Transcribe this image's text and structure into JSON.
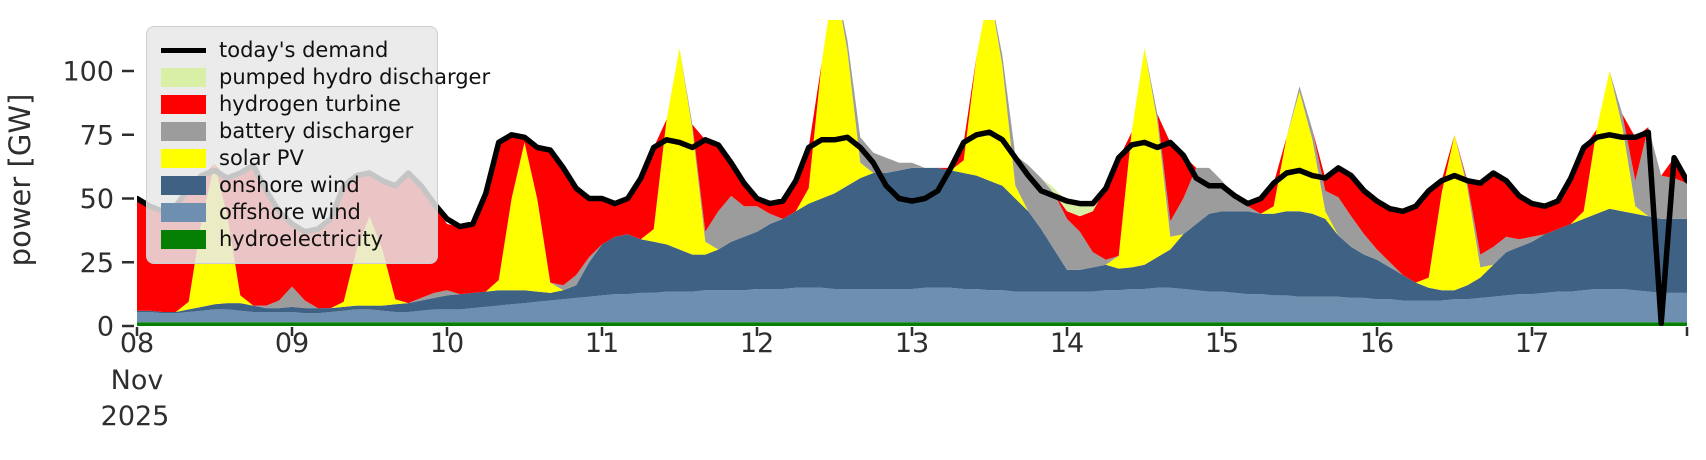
{
  "figure_title": "",
  "axes": {
    "ylabel": "power [GW]",
    "ylim": [
      0,
      120
    ],
    "ytick_values": [
      0,
      25,
      50,
      75,
      100
    ],
    "ytick_labels": [
      "0",
      "25",
      "50",
      "75",
      "100"
    ],
    "xtick_days": [
      8,
      9,
      10,
      11,
      12,
      13,
      14,
      15,
      16,
      17
    ],
    "xtick_labels": [
      "08",
      "09",
      "10",
      "11",
      "12",
      "13",
      "14",
      "15",
      "16",
      "17"
    ],
    "x_month_label": "Nov",
    "x_year_label": "2025",
    "x_end_day": 18,
    "tick_color": "#2e2e2e"
  },
  "legend": {
    "items": [
      {
        "label": "today's demand",
        "color": "#000000",
        "swatch": "line"
      },
      {
        "label": "pumped hydro discharger",
        "color": "#d9efa6",
        "swatch": "patch"
      },
      {
        "label": "hydrogen turbine",
        "color": "#fe0000",
        "swatch": "patch"
      },
      {
        "label": "battery discharger",
        "color": "#9c9c9c",
        "swatch": "patch"
      },
      {
        "label": "solar PV",
        "color": "#ffff00",
        "swatch": "patch"
      },
      {
        "label": "onshore wind",
        "color": "#3f6284",
        "swatch": "patch"
      },
      {
        "label": "offshore wind",
        "color": "#6e8fb0",
        "swatch": "patch"
      },
      {
        "label": "hydroelectricity",
        "color": "#058005",
        "swatch": "patch"
      }
    ]
  },
  "chart_data": {
    "type": "area",
    "stacked": true,
    "title": "",
    "xlabel": "Nov 2025 (days 08-18)",
    "ylabel": "power [GW]",
    "ylim": [
      0,
      120
    ],
    "x_start": "2025-11-08T00:00",
    "x_end": "2025-11-18T00:00",
    "step_hours": 2,
    "legend_position": "upper left",
    "grid": false,
    "demand_line": {
      "name": "today's demand",
      "color": "#000000",
      "values": [
        50,
        47,
        45,
        47,
        54,
        59,
        61,
        58,
        60,
        63,
        53,
        45,
        40,
        37,
        38,
        42,
        55,
        59,
        60,
        57,
        55,
        60,
        55,
        48,
        42,
        39,
        40,
        52,
        72,
        75,
        74,
        70,
        69,
        62,
        54,
        50,
        50,
        48,
        50,
        58,
        70,
        73,
        72,
        70,
        73,
        71,
        64,
        56,
        50,
        48,
        49,
        57,
        70,
        73,
        73,
        74,
        70,
        64,
        55,
        50,
        49,
        50,
        53,
        62,
        72,
        75,
        76,
        73,
        66,
        59,
        53,
        51,
        49,
        48,
        48,
        54,
        66,
        71,
        72,
        70,
        72,
        67,
        58,
        55,
        55,
        51,
        48,
        50,
        56,
        60,
        61,
        59,
        58,
        62,
        59,
        53,
        49,
        46,
        45,
        47,
        53,
        57,
        59,
        57,
        56,
        60,
        57,
        51,
        48,
        47,
        49,
        58,
        70,
        74,
        75,
        74,
        74,
        76,
        1,
        66,
        57
      ]
    },
    "stack_bottom_to_top": [
      {
        "name": "hydroelectricity",
        "color": "#058005",
        "values": [
          1.5,
          1.5,
          1.5,
          1.5,
          1.5,
          1.5,
          1.5,
          1.5,
          1.5,
          1.5,
          1.5,
          1.5,
          1.5,
          1.5,
          1.5,
          1.5,
          1.5,
          1.5,
          1.5,
          1.5,
          1.5,
          1.5,
          1.5,
          1.5,
          1.5,
          1.5,
          1.5,
          1.5,
          1.5,
          1.5,
          1.5,
          1.5,
          1.5,
          1.5,
          1.5,
          1.5,
          1.5,
          1.5,
          1.5,
          1.5,
          1.5,
          1.5,
          1.5,
          1.5,
          1.5,
          1.5,
          1.5,
          1.5,
          1.5,
          1.5,
          1.5,
          1.5,
          1.5,
          1.5,
          1.5,
          1.5,
          1.5,
          1.5,
          1.5,
          1.5,
          1.5,
          1.5,
          1.5,
          1.5,
          1.5,
          1.5,
          1.5,
          1.5,
          1.5,
          1.5,
          1.5,
          1.5,
          1.5,
          1.5,
          1.5,
          1.5,
          1.5,
          1.5,
          1.5,
          1.5,
          1.5,
          1.5,
          1.5,
          1.5,
          1.5,
          1.5,
          1.5,
          1.5,
          1.5,
          1.5,
          1.5,
          1.5,
          1.5,
          1.5,
          1.5,
          1.5,
          1.5,
          1.5,
          1.5,
          1.5,
          1.5,
          1.5,
          1.5,
          1.5,
          1.5,
          1.5,
          1.5,
          1.5,
          1.5,
          1.5,
          1.5,
          1.5,
          1.5,
          1.5,
          1.5,
          1.5,
          1.5,
          1.5,
          1.5,
          1.5,
          1.5
        ]
      },
      {
        "name": "offshore wind",
        "color": "#6e8fb0",
        "values": [
          4,
          4,
          3.5,
          3.5,
          4,
          4.5,
          5,
          5,
          4.5,
          4,
          4,
          4,
          4,
          3.5,
          3.5,
          4,
          4.5,
          5,
          5,
          4.5,
          4,
          4,
          4.5,
          5,
          5,
          5,
          5.5,
          6,
          6.5,
          7,
          7.5,
          8,
          8.5,
          9,
          9.5,
          10,
          10.5,
          11,
          11,
          11.5,
          11.5,
          12,
          12,
          12,
          12.5,
          12.5,
          12.5,
          12.5,
          13,
          13,
          13,
          13.5,
          13.5,
          13.5,
          13,
          13,
          13,
          13,
          13,
          13,
          13,
          13.5,
          13.5,
          13.5,
          13,
          13,
          12.5,
          12.5,
          12,
          12,
          12,
          12,
          12,
          12,
          12,
          12.5,
          12.5,
          13,
          13,
          13.5,
          13.5,
          13,
          12.5,
          12,
          12,
          11.5,
          11,
          11,
          10.5,
          10.5,
          10,
          10,
          10,
          10,
          9.5,
          9.5,
          9,
          9,
          8.5,
          8.5,
          8.5,
          8.5,
          9,
          9,
          9.5,
          10,
          10.5,
          11,
          11,
          11.5,
          12,
          12,
          12.5,
          13,
          13,
          13,
          12.5,
          12,
          11.5,
          11.5,
          11.5
        ]
      },
      {
        "name": "onshore wind",
        "color": "#3f6284",
        "values": [
          0.5,
          0.5,
          0.5,
          0.5,
          1,
          1.5,
          2,
          2.5,
          3,
          2.5,
          1.5,
          1.5,
          2,
          2,
          2,
          1.5,
          1.5,
          1.5,
          1.5,
          2,
          3,
          3.5,
          4,
          4.5,
          5.5,
          6,
          6,
          6,
          6,
          5.5,
          5,
          4,
          3,
          3.5,
          5,
          13.5,
          20,
          22.5,
          23.5,
          21,
          20,
          18.5,
          16.5,
          14.5,
          14,
          16,
          19,
          21,
          22.5,
          25.5,
          27.5,
          30,
          33,
          35,
          37.5,
          40.5,
          43.5,
          45.5,
          45.5,
          46.5,
          47.5,
          47,
          47,
          46,
          45.5,
          44.5,
          43,
          41,
          36.5,
          31.5,
          24.5,
          16.5,
          8.5,
          8.5,
          9.5,
          10,
          8.5,
          8.5,
          9.5,
          12,
          15,
          21.5,
          26,
          30.5,
          31.5,
          32,
          32.5,
          31.5,
          32,
          33,
          33.5,
          32.5,
          30.5,
          24,
          20,
          17,
          15.5,
          12.5,
          10,
          7,
          5,
          4,
          3.5,
          5.5,
          8,
          12.5,
          17,
          18.5,
          20.5,
          23,
          24.5,
          26.5,
          28,
          29.5,
          31.5,
          30.5,
          30,
          29.5,
          29,
          29,
          29
        ]
      },
      {
        "name": "solar PV",
        "color": "#ffff00",
        "values": [
          0,
          0,
          0,
          0,
          3,
          34,
          55,
          34,
          3,
          0,
          0,
          0,
          0,
          0,
          0,
          0,
          2,
          22,
          35,
          22,
          2,
          0,
          0,
          0,
          0,
          0,
          0,
          0,
          4,
          36,
          58,
          36,
          4,
          0,
          0,
          0,
          0,
          0,
          0,
          0,
          5,
          49,
          79,
          49,
          5,
          0,
          0,
          0,
          0,
          0,
          0,
          0,
          6,
          53,
          85,
          53,
          6,
          0,
          0,
          0,
          0,
          0,
          0,
          0,
          5,
          47,
          75,
          47,
          5,
          0,
          0,
          0,
          0,
          0,
          0,
          0,
          5,
          53,
          85,
          53,
          5,
          0,
          0,
          0,
          0,
          0,
          0,
          0,
          3,
          29,
          47,
          29,
          3,
          0,
          0,
          0,
          0,
          0,
          0,
          0,
          4,
          38,
          61,
          38,
          4,
          0,
          0,
          0,
          0,
          0,
          0,
          0,
          3,
          33,
          54,
          33,
          3,
          0,
          0,
          0,
          0
        ]
      },
      {
        "name": "battery discharger",
        "color": "#9c9c9c",
        "values": [
          0,
          0,
          0,
          0,
          0,
          0,
          0,
          0,
          0,
          0,
          1,
          3,
          8,
          3,
          0,
          0,
          0,
          0,
          0,
          0,
          0,
          0,
          1,
          2,
          2,
          0,
          0,
          0,
          0,
          0,
          0,
          0,
          0,
          2,
          4,
          2,
          0,
          0,
          0,
          0,
          0,
          0,
          0,
          2,
          4,
          15,
          18,
          12,
          10,
          4,
          0,
          0,
          0,
          0,
          0,
          4,
          10,
          8,
          6,
          3,
          2,
          0,
          0,
          0,
          0,
          0,
          0,
          4,
          12,
          18,
          20,
          22,
          20,
          15,
          6,
          2,
          0,
          0,
          0,
          3,
          6,
          14,
          22,
          18,
          12,
          6,
          2,
          0,
          0,
          0,
          2,
          4,
          8,
          15,
          12,
          8,
          4,
          2,
          0,
          0,
          0,
          0,
          0,
          2,
          5,
          7,
          6,
          3,
          2,
          0,
          0,
          0,
          0,
          0,
          0,
          5,
          10,
          35,
          17,
          16,
          14
        ]
      },
      {
        "name": "hydrogen turbine",
        "color": "#fe0000",
        "values": [
          44,
          41,
          39.5,
          41.5,
          44.5,
          17.5,
          0,
          15,
          48,
          55,
          45,
          35,
          24.5,
          27,
          31,
          35,
          45.5,
          29,
          17,
          27,
          44.5,
          51,
          44,
          35,
          26,
          26.5,
          27,
          38.5,
          54,
          25,
          2,
          20.5,
          52,
          46,
          34,
          23,
          18,
          13,
          14,
          24,
          32,
          0,
          0,
          0,
          36,
          26,
          13,
          9,
          3,
          4,
          7,
          12,
          16,
          0,
          0,
          0,
          0,
          0,
          0,
          0,
          0,
          0,
          0,
          1,
          7,
          0,
          0,
          0,
          0,
          0,
          0,
          0,
          3,
          6,
          16,
          28,
          38,
          0,
          0,
          0,
          31,
          17,
          0,
          0,
          0,
          0,
          1,
          6,
          9,
          0,
          0,
          0,
          5,
          11.5,
          16,
          17,
          19,
          21,
          25,
          30,
          34,
          5,
          0,
          1,
          28,
          29,
          22,
          17,
          13,
          11,
          11,
          18,
          25,
          0,
          0,
          0,
          17,
          0,
          0,
          8,
          1
        ]
      },
      {
        "name": "pumped hydro discharger",
        "color": "#d9efa6",
        "values": [
          0,
          0,
          0,
          0,
          0,
          0,
          0,
          0,
          0,
          0,
          0,
          0,
          0,
          0,
          0,
          0,
          0,
          0,
          0,
          0,
          0,
          0,
          0,
          0,
          0,
          0,
          0,
          0,
          0,
          0,
          0,
          0,
          0,
          0,
          0,
          0,
          0,
          0,
          0,
          0,
          0,
          0,
          0,
          0,
          0,
          0,
          0,
          0,
          0,
          0,
          0,
          0,
          0,
          0,
          0,
          0,
          0,
          0,
          0,
          0,
          0,
          0,
          0,
          0,
          0,
          0,
          0,
          0,
          0,
          0,
          0,
          2,
          4,
          5,
          3,
          0,
          0,
          0,
          0,
          0,
          0,
          0,
          0,
          0,
          0,
          0,
          0,
          0,
          0,
          0,
          0,
          0,
          0,
          0,
          0,
          0,
          0,
          0,
          0,
          0,
          0,
          0,
          0,
          0,
          0,
          0,
          0,
          0,
          0,
          0,
          0,
          0,
          0,
          0,
          0,
          0,
          0,
          0,
          0,
          0,
          0
        ]
      }
    ]
  }
}
